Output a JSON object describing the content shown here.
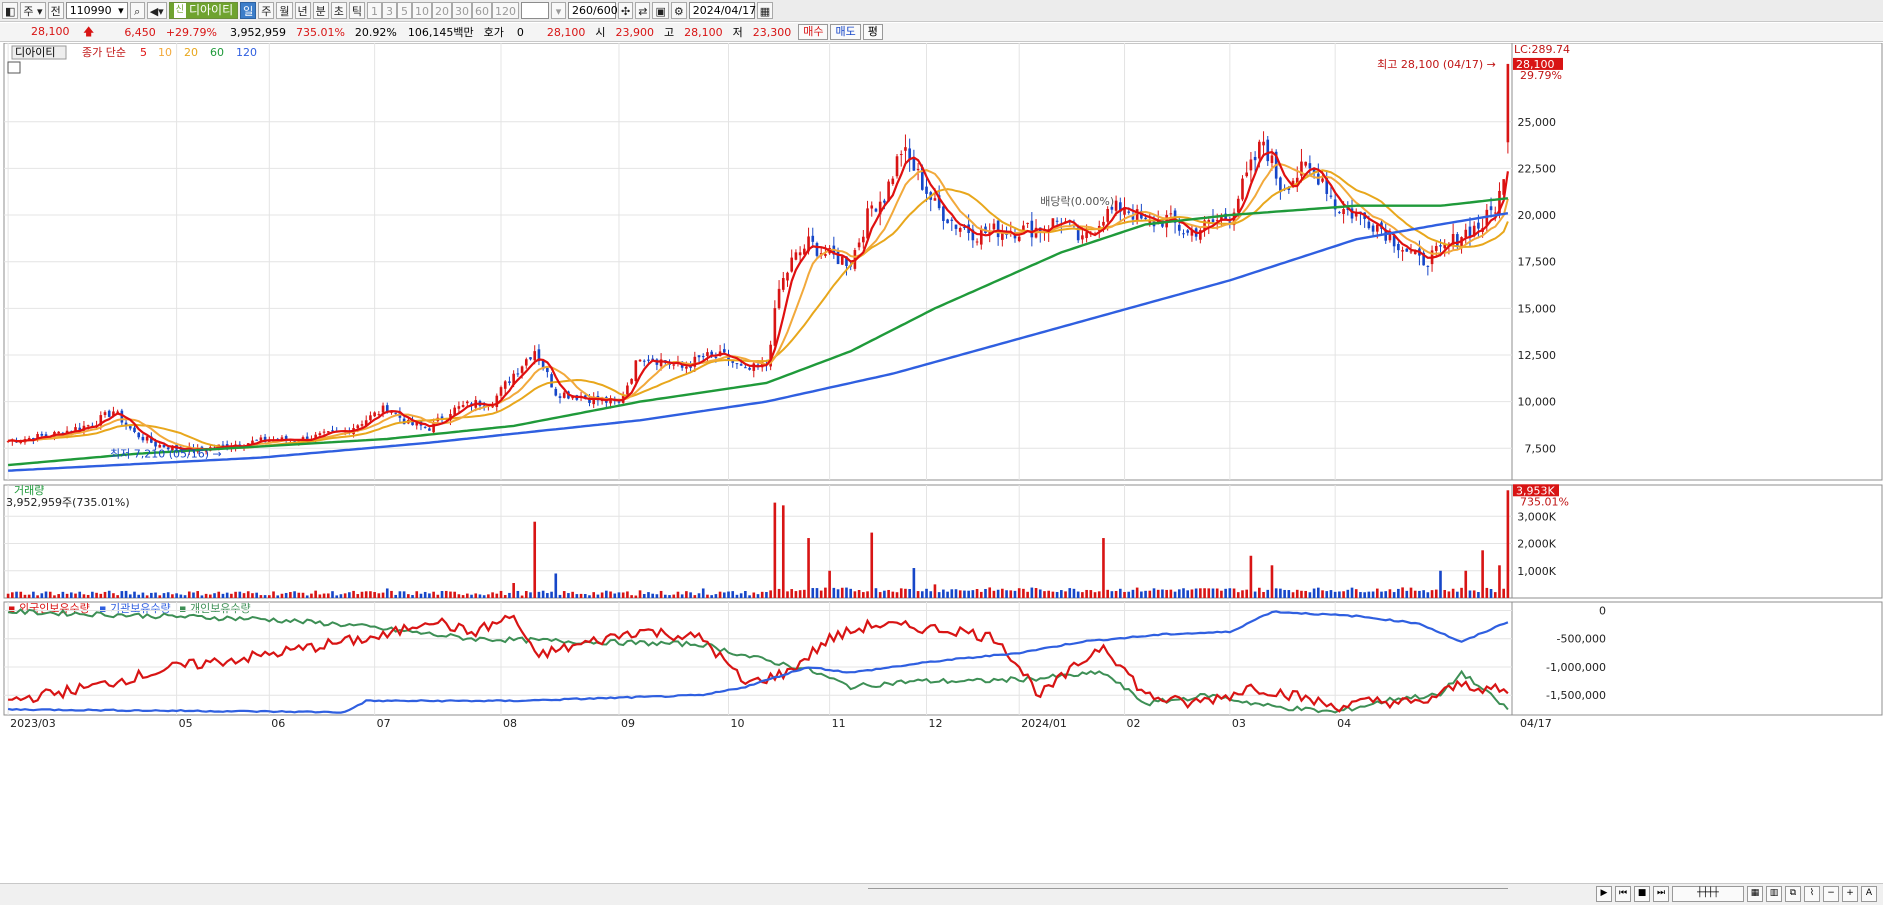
{
  "toolbar": {
    "period_main": "주",
    "prev_label": "전",
    "code": "110990",
    "stock_name": "디아이티",
    "periods": [
      "일",
      "주",
      "월",
      "년",
      "분",
      "초",
      "틱"
    ],
    "selected_period": "일",
    "intervals": [
      "1",
      "3",
      "5",
      "10",
      "20",
      "30",
      "60",
      "120"
    ],
    "count": "260",
    "count_total": "/600",
    "date": "2024/04/17"
  },
  "quote": {
    "price": "28,100",
    "change": "6,450",
    "change_pct": "+29.79%",
    "volume": "3,952,959",
    "volume_pct": "735.01%",
    "turnover": "20.92%",
    "amount": "106,145백만",
    "hoga_label": "호가",
    "hoga_value": "0",
    "ask": "28,100",
    "open_label": "시",
    "open": "23,900",
    "high_label": "고",
    "high": "28,100",
    "low_label": "저",
    "low": "23,300",
    "buy_label": "매수",
    "sell_label": "매도",
    "eval_label": "평"
  },
  "colors": {
    "up": "#d81414",
    "down": "#1646c8",
    "ma5": "#e01010",
    "ma10": "#f2a93b",
    "ma20": "#e8a71c",
    "ma60": "#1f9a3a",
    "ma120": "#2f5fe0",
    "foreign": "#d81414",
    "institution": "#2f5fe0",
    "individual": "#3d8f55"
  },
  "chart_data": [
    {
      "type": "candlestick",
      "title_tab": "디아이티",
      "legend": [
        "종가 단순",
        "5",
        "10",
        "20",
        "60",
        "120"
      ],
      "y_ticks": [
        "25,000",
        "22,500",
        "20,000",
        "17,500",
        "15,000",
        "12,500",
        "10,000",
        "7,500"
      ],
      "ylim": [
        5800,
        28900
      ],
      "x_ticks": [
        "2023/03",
        "05",
        "06",
        "07",
        "08",
        "09",
        "10",
        "11",
        "12",
        "2024/01",
        "02",
        "03",
        "04",
        "04/17"
      ],
      "annotations": {
        "high_label": "최고 28,100 (04/17)",
        "low_label": "최저 7,210 (05/16)",
        "dividend_label": "배당락(0.00%)",
        "limit_label": "LC:289.74",
        "last_price": "28,100",
        "last_pct": "29.79%"
      },
      "close_anchors": [
        [
          0,
          7900
        ],
        [
          10,
          8200
        ],
        [
          20,
          8800
        ],
        [
          25,
          9500
        ],
        [
          30,
          8300
        ],
        [
          35,
          7700
        ],
        [
          40,
          7500
        ],
        [
          45,
          7400
        ],
        [
          50,
          7600
        ],
        [
          60,
          7900
        ],
        [
          70,
          8000
        ],
        [
          80,
          8400
        ],
        [
          90,
          9700
        ],
        [
          95,
          8800
        ],
        [
          100,
          8600
        ],
        [
          105,
          9500
        ],
        [
          110,
          9900
        ],
        [
          115,
          10000
        ],
        [
          120,
          11500
        ],
        [
          125,
          12800
        ],
        [
          130,
          10500
        ],
        [
          135,
          10300
        ],
        [
          140,
          10100
        ],
        [
          145,
          9900
        ],
        [
          150,
          12500
        ],
        [
          155,
          12200
        ],
        [
          160,
          11800
        ],
        [
          165,
          12400
        ],
        [
          170,
          12400
        ],
        [
          175,
          11600
        ],
        [
          180,
          12000
        ],
        [
          183,
          16000
        ],
        [
          186,
          17500
        ],
        [
          190,
          18500
        ],
        [
          195,
          17800
        ],
        [
          200,
          17500
        ],
        [
          205,
          20500
        ],
        [
          208,
          21000
        ],
        [
          212,
          23500
        ],
        [
          215,
          22500
        ],
        [
          220,
          20500
        ],
        [
          225,
          19500
        ],
        [
          230,
          19000
        ],
        [
          235,
          19200
        ],
        [
          240,
          19200
        ],
        [
          245,
          19300
        ],
        [
          250,
          19800
        ],
        [
          255,
          18500
        ],
        [
          260,
          20000
        ],
        [
          265,
          20500
        ],
        [
          270,
          19500
        ],
        [
          275,
          19800
        ],
        [
          280,
          19000
        ],
        [
          285,
          19500
        ],
        [
          290,
          20000
        ],
        [
          295,
          22500
        ],
        [
          298,
          24000
        ],
        [
          302,
          21500
        ],
        [
          308,
          22500
        ],
        [
          312,
          22000
        ],
        [
          315,
          20500
        ],
        [
          320,
          20000
        ],
        [
          325,
          19500
        ],
        [
          330,
          18500
        ],
        [
          335,
          17500
        ],
        [
          340,
          18000
        ],
        [
          345,
          19000
        ],
        [
          350,
          19500
        ],
        [
          353,
          20500
        ],
        [
          355,
          21700
        ],
        [
          356,
          28100
        ]
      ],
      "ma60_anchors": [
        [
          0,
          6600
        ],
        [
          30,
          7200
        ],
        [
          60,
          7600
        ],
        [
          90,
          8000
        ],
        [
          120,
          8700
        ],
        [
          150,
          10000
        ],
        [
          180,
          11000
        ],
        [
          200,
          12700
        ],
        [
          220,
          15000
        ],
        [
          250,
          18000
        ],
        [
          270,
          19500
        ],
        [
          290,
          20000
        ],
        [
          320,
          20500
        ],
        [
          340,
          20500
        ],
        [
          356,
          20900
        ]
      ],
      "ma120_anchors": [
        [
          0,
          6300
        ],
        [
          60,
          7000
        ],
        [
          100,
          7800
        ],
        [
          150,
          9000
        ],
        [
          180,
          10000
        ],
        [
          210,
          11500
        ],
        [
          250,
          14000
        ],
        [
          290,
          16500
        ],
        [
          320,
          18700
        ],
        [
          340,
          19500
        ],
        [
          356,
          20100
        ]
      ]
    },
    {
      "type": "bar",
      "title": "거래량",
      "summary": "3,952,959주(735.01%)",
      "y_ticks": [
        "3,000K",
        "2,000K",
        "1,000K"
      ],
      "last_label": "3,953K",
      "last_pct": "735.01%",
      "ylim": [
        0,
        4000000
      ],
      "spikes": [
        [
          90,
          350000
        ],
        [
          120,
          550000
        ],
        [
          125,
          2800000
        ],
        [
          130,
          900000
        ],
        [
          150,
          280000
        ],
        [
          165,
          350000
        ],
        [
          182,
          3500000
        ],
        [
          184,
          3400000
        ],
        [
          190,
          2200000
        ],
        [
          195,
          1000000
        ],
        [
          205,
          2400000
        ],
        [
          215,
          1100000
        ],
        [
          220,
          500000
        ],
        [
          260,
          2200000
        ],
        [
          295,
          1550000
        ],
        [
          300,
          1200000
        ],
        [
          340,
          1000000
        ],
        [
          346,
          1000000
        ],
        [
          350,
          1750000
        ],
        [
          354,
          1200000
        ],
        [
          356,
          3953000
        ]
      ]
    },
    {
      "type": "line",
      "legend": [
        "외국인보유수량",
        "기관보유수량",
        "개인보유수량"
      ],
      "y_ticks": [
        "0",
        "-500,000",
        "-1,000,000",
        "-1,500,000"
      ],
      "ylim": [
        -1850000,
        150000
      ],
      "foreign_anchors": [
        [
          0,
          -1600000
        ],
        [
          20,
          -1350000
        ],
        [
          40,
          -1000000
        ],
        [
          60,
          -800000
        ],
        [
          80,
          -550000
        ],
        [
          90,
          -450000
        ],
        [
          100,
          -150000
        ],
        [
          110,
          -400000
        ],
        [
          120,
          -100000
        ],
        [
          125,
          -800000
        ],
        [
          150,
          -350000
        ],
        [
          165,
          -500000
        ],
        [
          175,
          -1300000
        ],
        [
          185,
          -1100000
        ],
        [
          195,
          -500000
        ],
        [
          205,
          -250000
        ],
        [
          215,
          -300000
        ],
        [
          225,
          -350000
        ],
        [
          235,
          -500000
        ],
        [
          245,
          -1500000
        ],
        [
          260,
          -600000
        ],
        [
          270,
          -1500000
        ],
        [
          280,
          -1650000
        ],
        [
          290,
          -1500000
        ],
        [
          295,
          -1350000
        ],
        [
          305,
          -1500000
        ],
        [
          315,
          -1700000
        ],
        [
          325,
          -1600000
        ],
        [
          335,
          -1650000
        ],
        [
          345,
          -1300000
        ],
        [
          356,
          -1450000
        ]
      ],
      "institution_anchors": [
        [
          0,
          -1750000
        ],
        [
          80,
          -1800000
        ],
        [
          85,
          -1600000
        ],
        [
          120,
          -1600000
        ],
        [
          165,
          -1500000
        ],
        [
          175,
          -1350000
        ],
        [
          190,
          -1000000
        ],
        [
          200,
          -1100000
        ],
        [
          220,
          -900000
        ],
        [
          240,
          -750000
        ],
        [
          255,
          -550000
        ],
        [
          275,
          -420000
        ],
        [
          290,
          -380000
        ],
        [
          300,
          -20000
        ],
        [
          320,
          -100000
        ],
        [
          335,
          -230000
        ],
        [
          345,
          -560000
        ],
        [
          356,
          -200000
        ]
      ],
      "individual_anchors": [
        [
          0,
          -20000
        ],
        [
          60,
          -150000
        ],
        [
          80,
          -250000
        ],
        [
          110,
          -500000
        ],
        [
          135,
          -550000
        ],
        [
          165,
          -600000
        ],
        [
          175,
          -800000
        ],
        [
          190,
          -1050000
        ],
        [
          200,
          -1350000
        ],
        [
          215,
          -1250000
        ],
        [
          230,
          -1250000
        ],
        [
          245,
          -1200000
        ],
        [
          260,
          -1100000
        ],
        [
          270,
          -1650000
        ],
        [
          285,
          -1500000
        ],
        [
          300,
          -1700000
        ],
        [
          315,
          -1800000
        ],
        [
          330,
          -1550000
        ],
        [
          340,
          -1500000
        ],
        [
          345,
          -1100000
        ],
        [
          356,
          -1750000
        ]
      ]
    }
  ]
}
